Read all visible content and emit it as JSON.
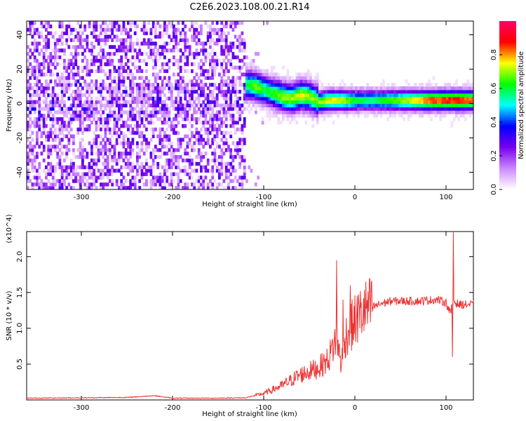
{
  "title": "C2E6.2023.108.00.21.R14",
  "chart_data": [
    {
      "type": "heatmap",
      "xlabel": "Height of straight line (km)",
      "ylabel": "Frequency (Hz)",
      "xlim": [
        -360,
        130
      ],
      "ylim": [
        -50,
        48
      ],
      "x_ticks": [
        -300,
        -200,
        -100,
        0,
        100
      ],
      "y_ticks": [
        -40,
        -20,
        0,
        20,
        40
      ],
      "grid": false,
      "colorbar": {
        "label": "Normalized spectral amplitude",
        "range": [
          0.0,
          1.0
        ],
        "ticks": [
          0.0,
          0.2,
          0.4,
          0.6,
          0.8
        ],
        "colors": [
          "#ffffff",
          "#cc88ff",
          "#7700ee",
          "#0000ff",
          "#00ffff",
          "#00ff00",
          "#ffff00",
          "#ff0000",
          "#ff0066"
        ]
      },
      "ridge": {
        "x": [
          -130,
          -120,
          -110,
          -100,
          -90,
          -80,
          -70,
          -60,
          -50,
          -40,
          -30,
          -20,
          -10,
          0,
          20,
          50,
          80,
          110,
          130
        ],
        "y": [
          8,
          10,
          9,
          7,
          5,
          3,
          2,
          4,
          3,
          0,
          1,
          1,
          1,
          1,
          1,
          1,
          1,
          1,
          1
        ],
        "amp": [
          0.45,
          0.6,
          0.7,
          0.6,
          0.65,
          0.7,
          0.7,
          0.75,
          0.7,
          0.7,
          0.75,
          0.75,
          0.7,
          0.6,
          0.6,
          0.7,
          0.85,
          0.9,
          0.85
        ]
      }
    },
    {
      "type": "line",
      "xlabel": "Height of straight line (km)",
      "ylabel": "SNR (10 * v/v)",
      "y_multiplier": "(x10^4)",
      "xlim": [
        -360,
        130
      ],
      "ylim": [
        0,
        23500
      ],
      "x_ticks": [
        -300,
        -200,
        -100,
        0,
        100
      ],
      "y_ticks": [
        5000,
        10000,
        15000,
        20000
      ],
      "y_tick_labels": [
        "0.5",
        "1.0",
        "1.5",
        "2.0"
      ],
      "series": [
        {
          "color": "#ee3333",
          "x": [
            -360,
            -300,
            -250,
            -220,
            -200,
            -150,
            -120,
            -100,
            -80,
            -60,
            -40,
            -30,
            -25,
            -20,
            -15,
            -10,
            -5,
            0,
            10,
            20,
            30,
            40,
            50,
            60,
            70,
            80,
            90,
            100,
            105,
            108,
            110,
            115,
            120,
            130
          ],
          "y": [
            250,
            300,
            350,
            600,
            250,
            250,
            300,
            900,
            2000,
            3500,
            4500,
            5500,
            7000,
            9000,
            5000,
            9000,
            10000,
            11000,
            12500,
            13000,
            13500,
            13800,
            13800,
            13800,
            13800,
            13900,
            14000,
            13600,
            12000,
            14000,
            13600,
            13300,
            13300,
            13300
          ]
        }
      ],
      "spikes": [
        {
          "x": -20,
          "y": 19500
        },
        {
          "x": -13,
          "y": 14000
        },
        {
          "x": -5,
          "y": 16000
        },
        {
          "x": 108,
          "y": 23500
        },
        {
          "x": 107,
          "y": 6000
        }
      ]
    }
  ]
}
